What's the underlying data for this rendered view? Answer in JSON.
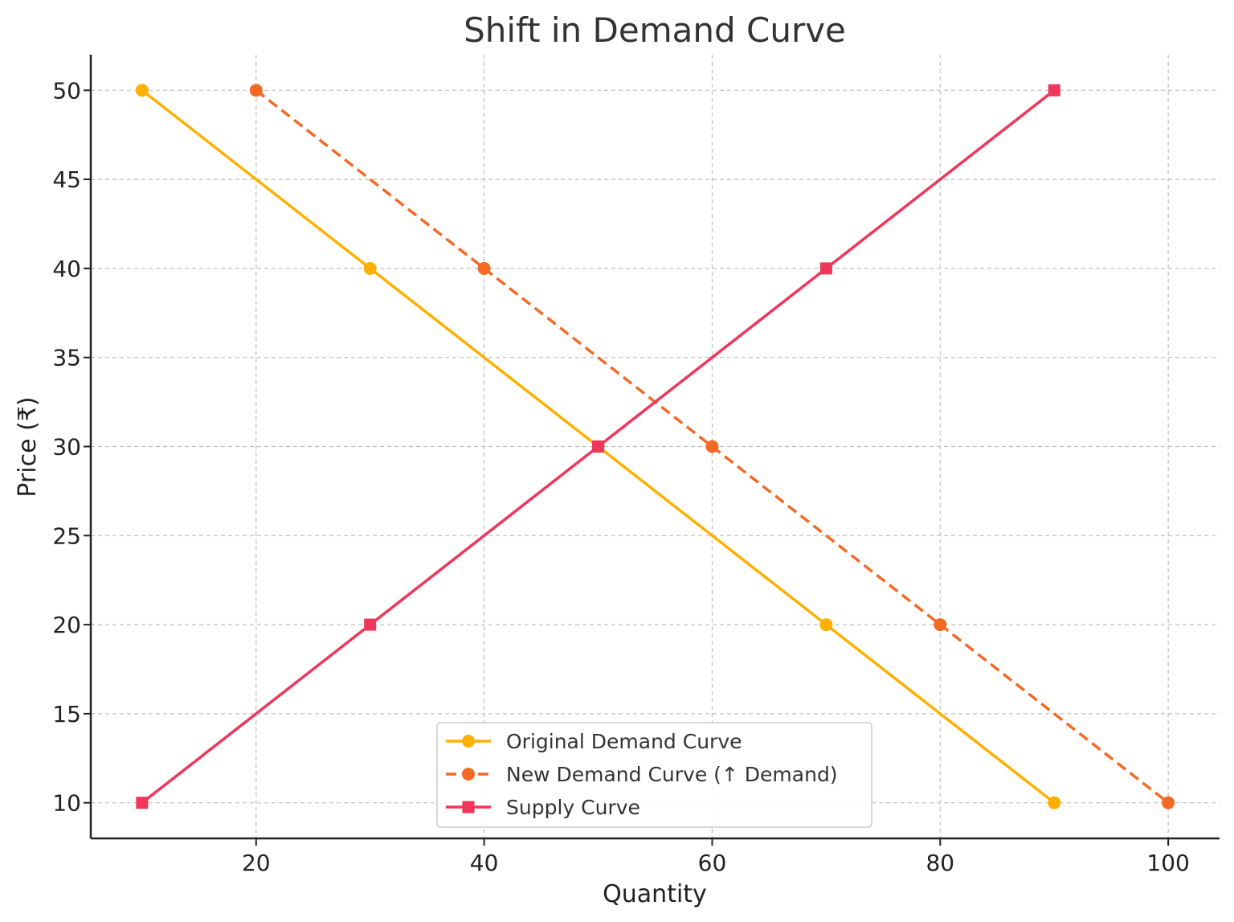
{
  "chart_data": {
    "type": "line",
    "title": "Shift in Demand Curve",
    "xlabel": "Quantity",
    "ylabel": "Price (₹)",
    "xlim": [
      5.5,
      104.5
    ],
    "ylim": [
      8.0,
      52.0
    ],
    "xticks": [
      20,
      40,
      60,
      80,
      100
    ],
    "yticks": [
      10,
      15,
      20,
      25,
      30,
      35,
      40,
      45,
      50
    ],
    "grid": true,
    "legend_position": "lower-center",
    "series": [
      {
        "name": "Original Demand Curve",
        "color": "#FFB000",
        "linestyle": "solid",
        "marker": "circle",
        "points": [
          [
            10,
            50
          ],
          [
            30,
            40
          ],
          [
            50,
            30
          ],
          [
            70,
            20
          ],
          [
            90,
            10
          ]
        ]
      },
      {
        "name": "New Demand Curve (↑ Demand)",
        "color": "#F46A25",
        "linestyle": "dashed",
        "marker": "circle",
        "points": [
          [
            20,
            50
          ],
          [
            40,
            40
          ],
          [
            60,
            30
          ],
          [
            80,
            20
          ],
          [
            100,
            10
          ]
        ]
      },
      {
        "name": "Supply Curve",
        "color": "#F0365A",
        "linestyle": "solid",
        "marker": "square",
        "points": [
          [
            10,
            10
          ],
          [
            30,
            20
          ],
          [
            50,
            30
          ],
          [
            70,
            40
          ],
          [
            90,
            50
          ]
        ]
      }
    ]
  }
}
